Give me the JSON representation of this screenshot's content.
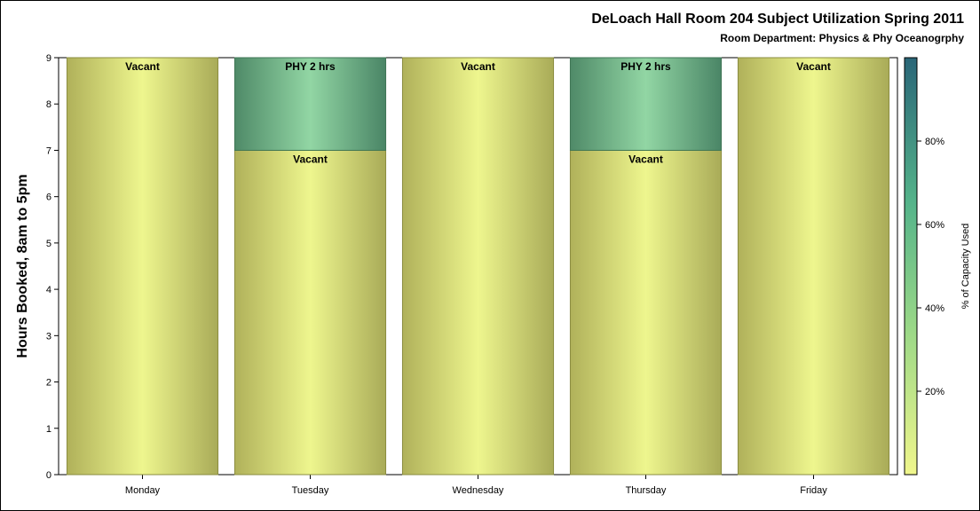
{
  "chart_data": {
    "type": "bar",
    "title": "DeLoach Hall Room 204 Subject Utilization Spring 2011",
    "subtitle": "Room Department:  Physics & Phy Oceanogrphy",
    "xlabel": "",
    "ylabel": "Hours Booked, 8am to 5pm",
    "ylim": [
      0,
      9
    ],
    "yticks": [
      "0",
      "1",
      "2",
      "3",
      "4",
      "5",
      "6",
      "7",
      "8",
      "9"
    ],
    "categories": [
      "Monday",
      "Tuesday",
      "Wednesday",
      "Thursday",
      "Friday"
    ],
    "stacked": true,
    "series": [
      {
        "name": "Vacant",
        "values": [
          9,
          7,
          9,
          7,
          9
        ],
        "pct_capacity": [
          0,
          0,
          0,
          0,
          0
        ]
      },
      {
        "name": "PHY",
        "values": [
          0,
          2,
          0,
          2,
          0
        ],
        "pct_capacity": [
          null,
          60,
          null,
          60,
          null
        ]
      }
    ],
    "segment_labels": [
      [
        "Vacant"
      ],
      [
        "Vacant",
        "PHY 2 hrs"
      ],
      [
        "Vacant"
      ],
      [
        "Vacant",
        "PHY 2 hrs"
      ],
      [
        "Vacant"
      ]
    ],
    "colorbar": {
      "label": "% of Capacity Used",
      "ticks": [
        "20%",
        "40%",
        "60%",
        "80%"
      ],
      "tick_values": [
        20,
        40,
        60,
        80
      ],
      "range": [
        0,
        100
      ],
      "colors": [
        "#eef58a",
        "#8fd3a0",
        "#2a6e7a"
      ]
    },
    "grid": false,
    "legend": "right"
  }
}
